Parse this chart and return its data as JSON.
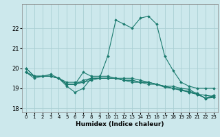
{
  "title": "",
  "xlabel": "Humidex (Indice chaleur)",
  "ylabel": "",
  "background_color": "#cce8ec",
  "grid_color": "#aacfd4",
  "line_color": "#1a7a6e",
  "x_values": [
    0,
    1,
    2,
    3,
    4,
    5,
    6,
    7,
    8,
    9,
    10,
    11,
    12,
    13,
    14,
    15,
    16,
    17,
    18,
    19,
    20,
    21,
    22,
    23
  ],
  "series": [
    [
      20.0,
      19.6,
      19.6,
      19.6,
      19.5,
      19.1,
      18.8,
      19.0,
      19.5,
      19.5,
      20.6,
      22.4,
      22.2,
      22.0,
      22.5,
      22.6,
      22.2,
      20.6,
      19.9,
      19.3,
      19.1,
      19.0,
      19.0,
      19.0
    ],
    [
      19.8,
      19.5,
      19.6,
      19.7,
      19.5,
      19.2,
      19.2,
      19.8,
      19.6,
      19.6,
      19.6,
      19.5,
      19.5,
      19.5,
      19.4,
      19.3,
      19.2,
      19.1,
      19.0,
      18.9,
      18.8,
      18.7,
      18.65,
      18.6
    ],
    [
      19.8,
      19.6,
      19.6,
      19.6,
      19.5,
      19.3,
      19.3,
      19.3,
      19.4,
      19.5,
      19.5,
      19.5,
      19.4,
      19.4,
      19.3,
      19.3,
      19.2,
      19.1,
      19.1,
      19.0,
      18.95,
      18.7,
      18.5,
      18.65
    ],
    [
      20.0,
      19.6,
      19.6,
      19.6,
      19.5,
      19.2,
      19.2,
      19.3,
      19.5,
      19.5,
      19.5,
      19.5,
      19.4,
      19.4,
      19.3,
      19.3,
      19.2,
      19.1,
      19.0,
      18.95,
      18.8,
      18.7,
      18.5,
      18.6
    ],
    [
      19.8,
      19.6,
      19.6,
      19.6,
      19.5,
      19.2,
      19.2,
      19.4,
      19.5,
      19.5,
      19.5,
      19.5,
      19.4,
      19.3,
      19.3,
      19.2,
      19.2,
      19.05,
      19.0,
      18.9,
      18.85,
      18.75,
      18.5,
      18.55
    ]
  ],
  "ylim": [
    17.8,
    23.2
  ],
  "yticks": [
    18,
    19,
    20,
    21,
    22
  ],
  "xticks": [
    0,
    1,
    2,
    3,
    4,
    5,
    6,
    7,
    8,
    9,
    10,
    11,
    12,
    13,
    14,
    15,
    16,
    17,
    18,
    19,
    20,
    21,
    22,
    23
  ],
  "marker": "D",
  "markersize": 1.8,
  "linewidth": 0.8,
  "xlabel_fontsize": 6.5,
  "ytick_fontsize": 6,
  "xtick_fontsize": 5
}
